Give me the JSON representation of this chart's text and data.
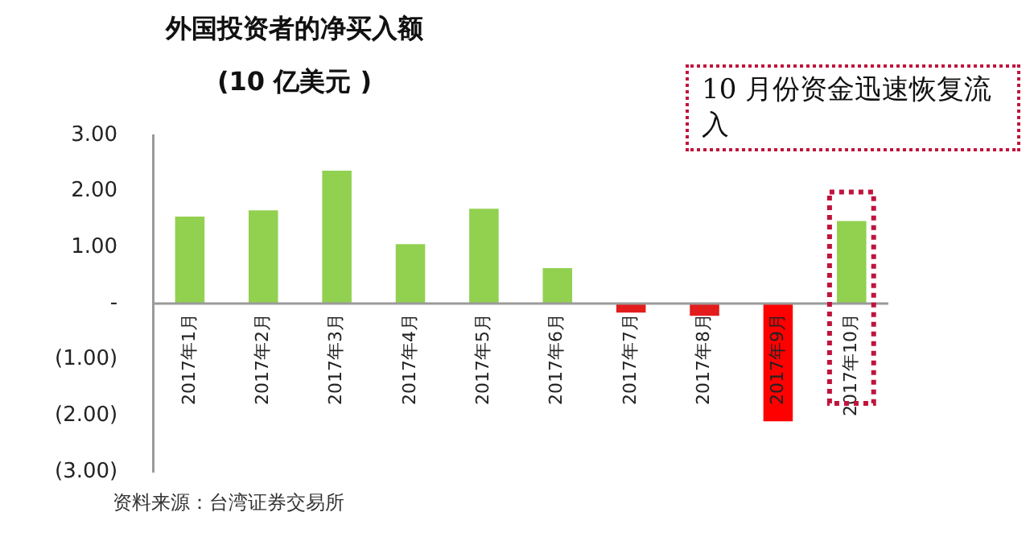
{
  "chart_data": {
    "type": "bar",
    "title": "外国投资者的净买入额",
    "subtitle": "(10 亿美元 )",
    "categories": [
      "2017年1月",
      "2017年2月",
      "2017年3月",
      "2017年4月",
      "2017年5月",
      "2017年6月",
      "2017年7月",
      "2017年8月",
      "2017年9月",
      "2017年10月"
    ],
    "values": [
      1.55,
      1.66,
      2.37,
      1.06,
      1.69,
      0.63,
      -0.16,
      -0.22,
      -2.1,
      1.47
    ],
    "colors": [
      "#92d050",
      "#92d050",
      "#92d050",
      "#92d050",
      "#92d050",
      "#92d050",
      "#e31c1c",
      "#e31c1c",
      "#ff0000",
      "#92d050"
    ],
    "ylim": [
      -3,
      3
    ],
    "yticks": [
      {
        "value": 3,
        "label": "3.00"
      },
      {
        "value": 2,
        "label": "2.00"
      },
      {
        "value": 1,
        "label": "1.00"
      },
      {
        "value": 0,
        "label": "-"
      },
      {
        "value": -1,
        "label": "(1.00)"
      },
      {
        "value": -2,
        "label": "(2.00)"
      },
      {
        "value": -3,
        "label": "(3.00)"
      }
    ],
    "annotations": [
      {
        "text": "10 月份资金迅速恢复流入",
        "x": "2017年10月",
        "y": 1.47
      },
      "资料来源：台湾证券交易所"
    ],
    "grid": false,
    "legend": false
  }
}
